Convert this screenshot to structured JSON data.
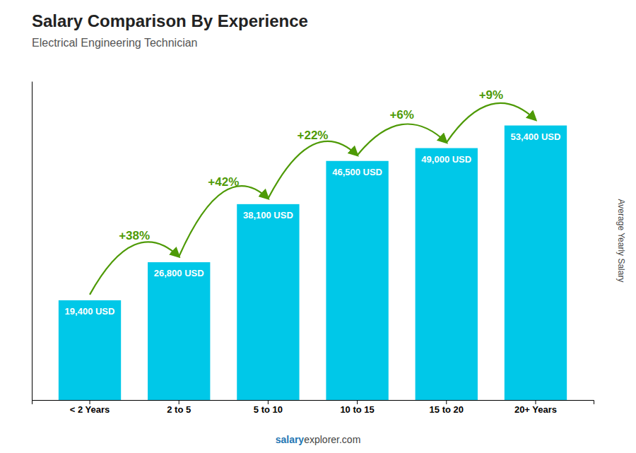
{
  "chart_data": {
    "type": "bar",
    "title": "Salary Comparison By Experience",
    "subtitle": "Electrical Engineering Technician",
    "ylabel": "Average Yearly Salary",
    "categories": [
      "< 2 Years",
      "2 to 5",
      "5 to 10",
      "10 to 15",
      "15 to 20",
      "20+ Years"
    ],
    "values": [
      19400,
      26800,
      38100,
      46500,
      49000,
      53400
    ],
    "value_labels": [
      "19,400 USD",
      "26,800 USD",
      "38,100 USD",
      "46,500 USD",
      "49,000 USD",
      "53,400 USD"
    ],
    "data_labels": true,
    "pct_labels": [
      "+38%",
      "+42%",
      "+22%",
      "+6%",
      "+9%"
    ],
    "footer_bold": "salary",
    "footer_normal": "explorer.com",
    "color": "#00c8e8",
    "ylim": [
      0,
      62000
    ],
    "grid": false,
    "tick_labels": "x"
  }
}
